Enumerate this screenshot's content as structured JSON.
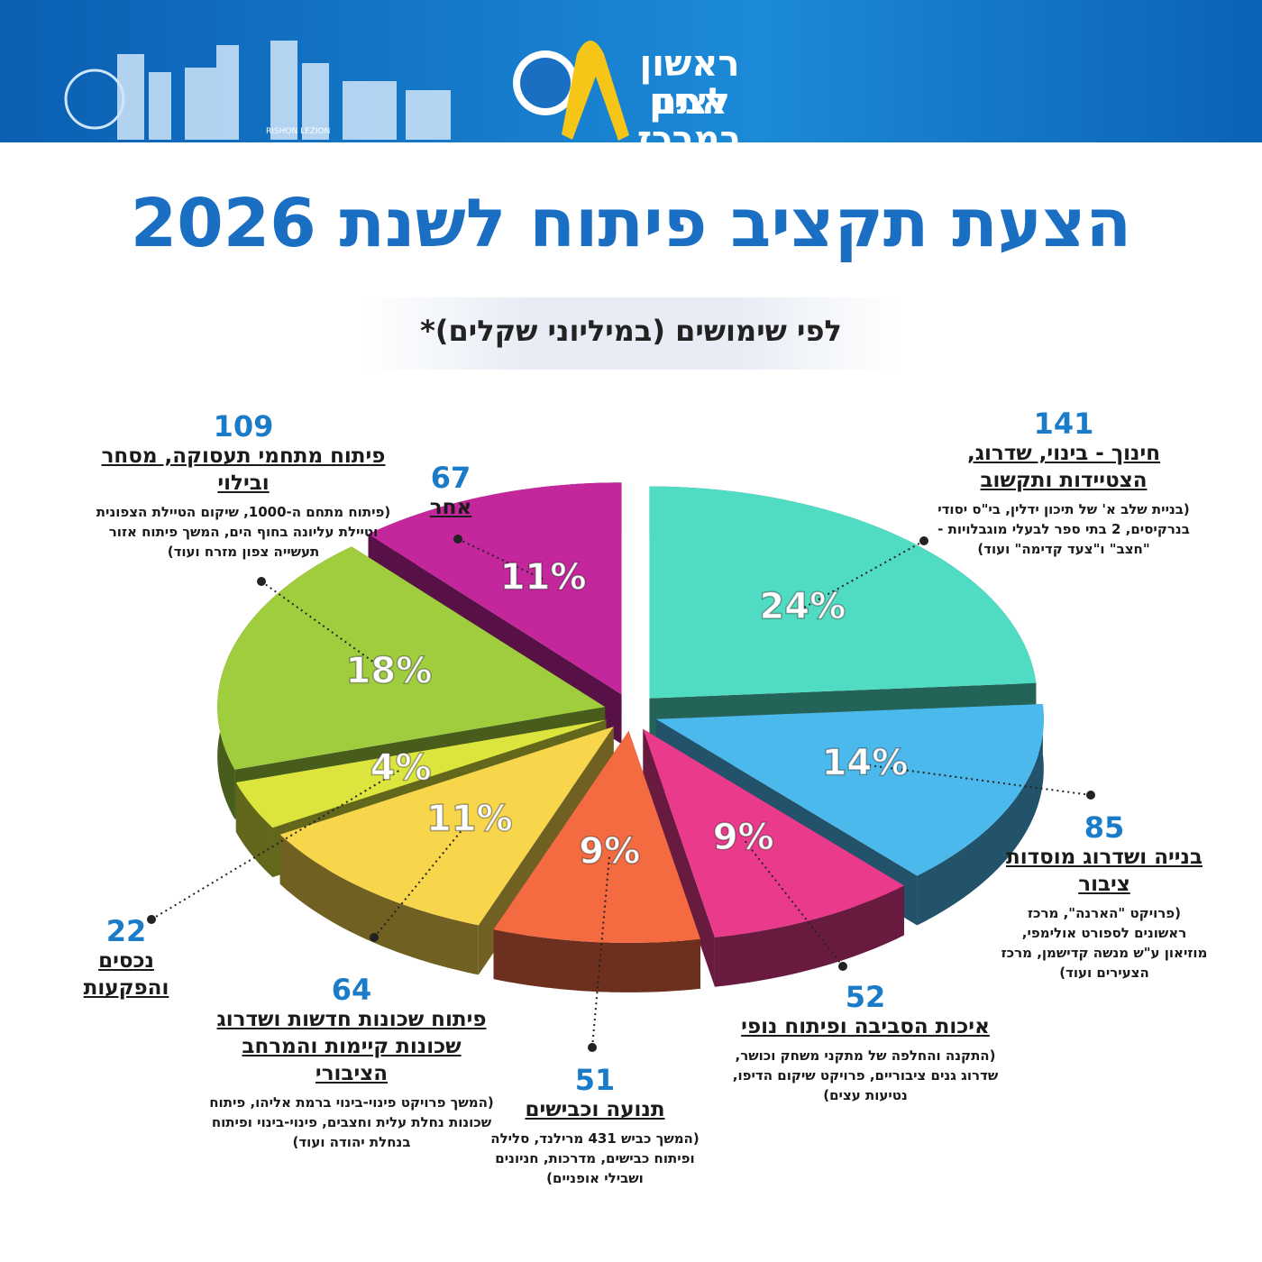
{
  "header": {
    "logo_line1": "ראשון לציון",
    "logo_line2": "אתם במרכז",
    "city_name": "RISHON LEZION"
  },
  "chart_data": {
    "type": "pie",
    "title": "הצעת תקציב פיתוח לשנת 2026",
    "subtitle": "לפי שימושים (במיליוני שקלים)*",
    "categories": [
      "חינוך - בינוי, שדרוג, הצטיידות ותקשוב",
      "בנייה ושדרוג מוסדות ציבור",
      "איכות הסביבה ופיתוח נופי",
      "תנועה וכבישים",
      "פיתוח שכונות חדשות ושדרוג שכונות קיימות והמרחב הציבורי",
      "נכסים והפקעות",
      "פיתוח מתחמי תעסוקה, מסחר ובילוי",
      "אחר"
    ],
    "values": [
      141,
      85,
      52,
      51,
      64,
      22,
      109,
      67
    ],
    "percent_labels": [
      "24%",
      "14%",
      "9%",
      "9%",
      "11%",
      "4%",
      "18%",
      "11%"
    ],
    "descriptions": [
      "(בניית שלב א' של תיכון ידלין, בי\"ס יסודי בנרקיסים, 2 בתי ספר לבעלי מוגבלויות -\"חצב\" ו\"צעד קדימה\" ועוד)",
      "(פרויקט \"הארנה\", מרכז ראשונים לספורט אולימפי, מוזיאון ע\"ש מנשה קדישמן, מרכז הצעירים ועוד)",
      "(התקנה והחלפה של מתקני משחק וכושר, שדרוג גנים ציבוריים, פרויקט שיקום הדיפו, נטיעות עצים)",
      "(המשך כביש 431 מרילנד, סלילה ופיתוח כבישים, מדרכות, חניונים ושבילי אופניים)",
      "(המשך פרויקט פינוי-בינוי ברמת אליהו, פיתוח שכונות נחלת עלית וחצבים, פינוי-בינוי ופיתוח בנחלת יהודה ועוד)",
      null,
      "(פיתוח מתחם ה-1000, שיקום הטיילת הצפונית וטיילת עליונה בחוף הים, המשך פיתוח אזור תעשייה צפון מזרח ועוד)",
      null
    ],
    "colors": [
      "#4fdcc3",
      "#4cb9ec",
      "#ea3a8c",
      "#f46b42",
      "#f8d64c",
      "#dce53e",
      "#9fcd3e",
      "#c4269b"
    ]
  }
}
